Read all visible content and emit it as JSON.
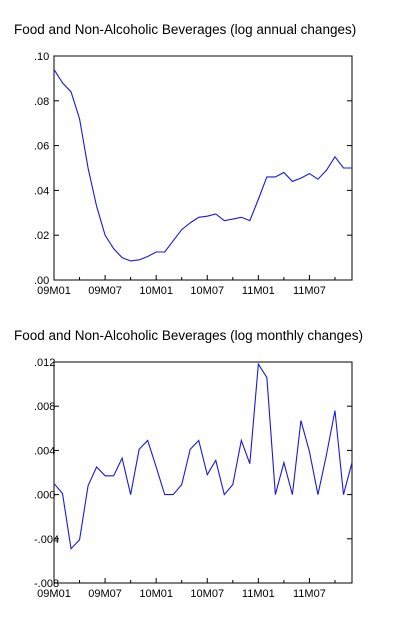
{
  "chart_data": [
    {
      "type": "line",
      "title": "Food and Non-Alcoholic Beverages (log annual changes)",
      "xlabel": "",
      "ylabel": "",
      "x_tick_labels": [
        "09M01",
        "09M07",
        "10M01",
        "10M07",
        "11M01",
        "11M07"
      ],
      "y_tick_labels": [
        ".10",
        ".08",
        ".06",
        ".04",
        ".02",
        ".00"
      ],
      "ylim": [
        0,
        0.1
      ],
      "grid": false,
      "series": [
        {
          "color": "#1a1adb",
          "values": [
            0.094,
            0.088,
            0.084,
            0.072,
            0.05,
            0.033,
            0.02,
            0.014,
            0.01,
            0.0085,
            0.009,
            0.0105,
            0.0125,
            0.0125,
            0.0175,
            0.0225,
            0.0255,
            0.028,
            0.0285,
            0.0295,
            0.0265,
            0.0272,
            0.028,
            0.0265,
            0.036,
            0.046,
            0.046,
            0.048,
            0.044,
            0.0455,
            0.0475,
            0.045,
            0.049,
            0.055,
            0.05,
            0.05
          ]
        }
      ]
    },
    {
      "type": "line",
      "title": "Food and Non-Alcoholic Beverages (log monthly changes)",
      "xlabel": "",
      "ylabel": "",
      "x_tick_labels": [
        "09M01",
        "09M07",
        "10M01",
        "10M07",
        "11M01",
        "11M07"
      ],
      "y_tick_labels": [
        ".012",
        ".008",
        ".004",
        ".000",
        "-.004",
        "-.008"
      ],
      "ylim": [
        -0.008,
        0.012
      ],
      "grid": false,
      "series": [
        {
          "color": "#1a1adb",
          "values": [
            0.001,
            0.0001,
            -0.0049,
            -0.0041,
            0.0008,
            0.0025,
            0.0017,
            0.0017,
            0.0033,
            0.0,
            0.0041,
            0.0049,
            0.0025,
            0.0,
            0.0,
            0.0009,
            0.0041,
            0.0049,
            0.0018,
            0.0031,
            0.0,
            0.0009,
            0.0049,
            0.0028,
            0.0118,
            0.0106,
            0.0,
            0.0029,
            0.0,
            0.0067,
            0.0039,
            0.0,
            0.0036,
            0.0076,
            0.0,
            0.0029
          ]
        }
      ]
    }
  ]
}
